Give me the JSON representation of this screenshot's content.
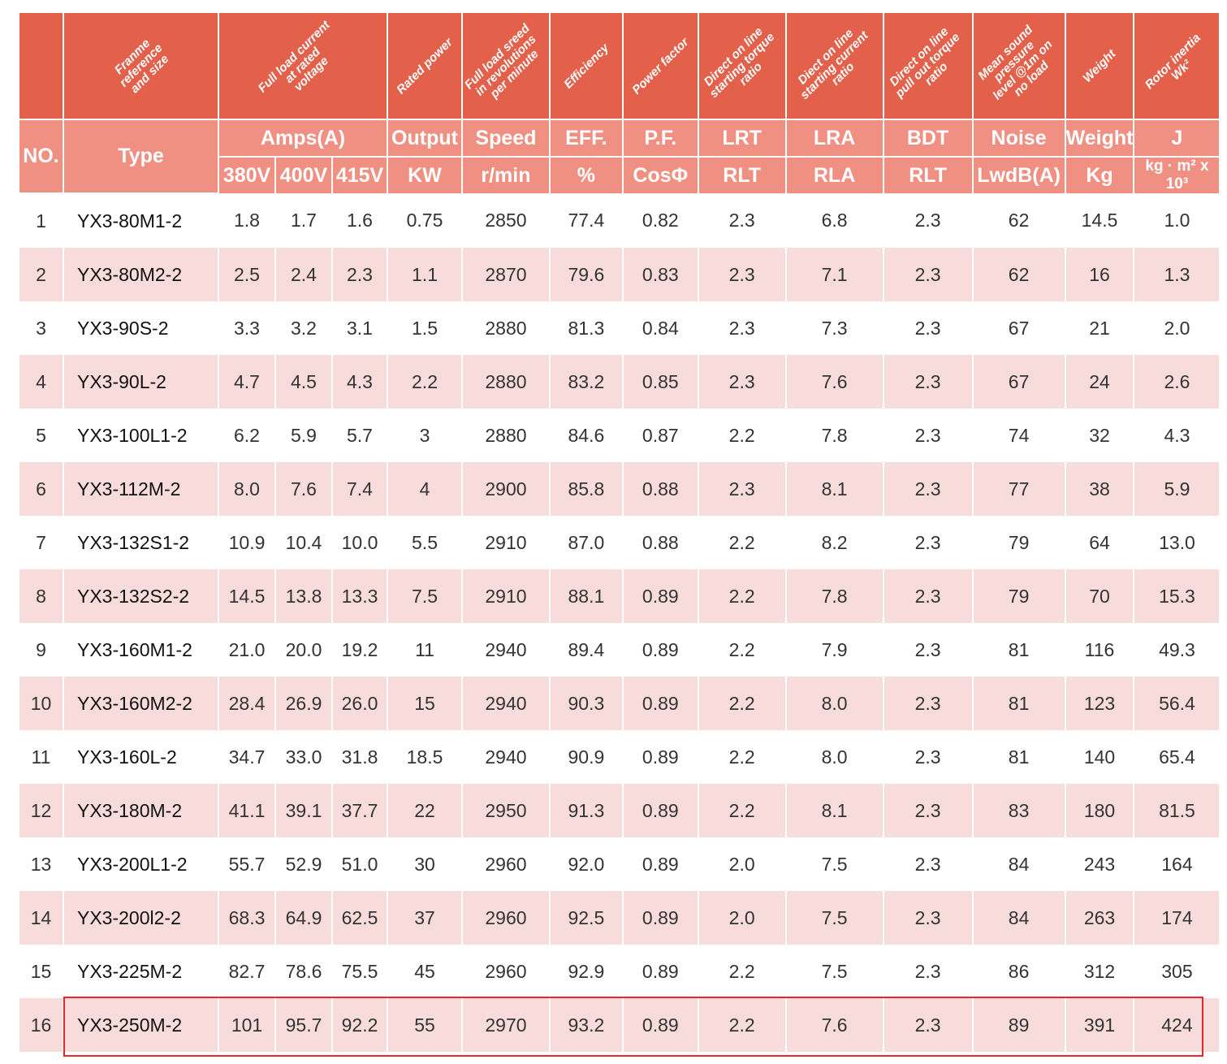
{
  "headers": {
    "rotated": [
      "Franme\nreference\nand size",
      "Full load current\nat rated\nvoltage",
      "Rated power",
      "Full load sreed\nin revolutions\nper minute",
      "Efficiency",
      "Power factor",
      "Direct on line\nstarting torque\nratio",
      "Diect on line\nstarting current\nratio",
      "Direct on line\npull out torque\nratio",
      "Mean sound\npressure\nlevel @1m on\nno load",
      "Weight",
      "Rotor inertia\nWk²"
    ],
    "no": "NO.",
    "type": "Type",
    "amps": "Amps(A)",
    "output": "Output",
    "speed": "Speed",
    "eff": "EFF.",
    "pf": "P.F.",
    "lrt": "LRT",
    "lra": "LRA",
    "bdt": "BDT",
    "noise": "Noise",
    "weight": "Weight",
    "j": "J",
    "v380": "380V",
    "v400": "400V",
    "v415": "415V",
    "kw": "KW",
    "rmin": "r/min",
    "pct": "%",
    "cos": "CosΦ",
    "rlt": "RLT",
    "rla": "RLA",
    "rlt2": "RLT",
    "lwdb": "LwdB(A)",
    "kg": "Kg",
    "jUnit": "kg · m² x 10³"
  },
  "rows": [
    [
      "1",
      "YX3-80M1-2",
      "1.8",
      "1.7",
      "1.6",
      "0.75",
      "2850",
      "77.4",
      "0.82",
      "2.3",
      "6.8",
      "2.3",
      "62",
      "14.5",
      "1.0"
    ],
    [
      "2",
      "YX3-80M2-2",
      "2.5",
      "2.4",
      "2.3",
      "1.1",
      "2870",
      "79.6",
      "0.83",
      "2.3",
      "7.1",
      "2.3",
      "62",
      "16",
      "1.3"
    ],
    [
      "3",
      "YX3-90S-2",
      "3.3",
      "3.2",
      "3.1",
      "1.5",
      "2880",
      "81.3",
      "0.84",
      "2.3",
      "7.3",
      "2.3",
      "67",
      "21",
      "2.0"
    ],
    [
      "4",
      "YX3-90L-2",
      "4.7",
      "4.5",
      "4.3",
      "2.2",
      "2880",
      "83.2",
      "0.85",
      "2.3",
      "7.6",
      "2.3",
      "67",
      "24",
      "2.6"
    ],
    [
      "5",
      "YX3-100L1-2",
      "6.2",
      "5.9",
      "5.7",
      "3",
      "2880",
      "84.6",
      "0.87",
      "2.2",
      "7.8",
      "2.3",
      "74",
      "32",
      "4.3"
    ],
    [
      "6",
      "YX3-112M-2",
      "8.0",
      "7.6",
      "7.4",
      "4",
      "2900",
      "85.8",
      "0.88",
      "2.3",
      "8.1",
      "2.3",
      "77",
      "38",
      "5.9"
    ],
    [
      "7",
      "YX3-132S1-2",
      "10.9",
      "10.4",
      "10.0",
      "5.5",
      "2910",
      "87.0",
      "0.88",
      "2.2",
      "8.2",
      "2.3",
      "79",
      "64",
      "13.0"
    ],
    [
      "8",
      "YX3-132S2-2",
      "14.5",
      "13.8",
      "13.3",
      "7.5",
      "2910",
      "88.1",
      "0.89",
      "2.2",
      "7.8",
      "2.3",
      "79",
      "70",
      "15.3"
    ],
    [
      "9",
      "YX3-160M1-2",
      "21.0",
      "20.0",
      "19.2",
      "11",
      "2940",
      "89.4",
      "0.89",
      "2.2",
      "7.9",
      "2.3",
      "81",
      "116",
      "49.3"
    ],
    [
      "10",
      "YX3-160M2-2",
      "28.4",
      "26.9",
      "26.0",
      "15",
      "2940",
      "90.3",
      "0.89",
      "2.2",
      "8.0",
      "2.3",
      "81",
      "123",
      "56.4"
    ],
    [
      "11",
      "YX3-160L-2",
      "34.7",
      "33.0",
      "31.8",
      "18.5",
      "2940",
      "90.9",
      "0.89",
      "2.2",
      "8.0",
      "2.3",
      "81",
      "140",
      "65.4"
    ],
    [
      "12",
      "YX3-180M-2",
      "41.1",
      "39.1",
      "37.7",
      "22",
      "2950",
      "91.3",
      "0.89",
      "2.2",
      "8.1",
      "2.3",
      "83",
      "180",
      "81.5"
    ],
    [
      "13",
      "YX3-200L1-2",
      "55.7",
      "52.9",
      "51.0",
      "30",
      "2960",
      "92.0",
      "0.89",
      "2.0",
      "7.5",
      "2.3",
      "84",
      "243",
      "164"
    ],
    [
      "14",
      "YX3-200l2-2",
      "68.3",
      "64.9",
      "62.5",
      "37",
      "2960",
      "92.5",
      "0.89",
      "2.0",
      "7.5",
      "2.3",
      "84",
      "263",
      "174"
    ],
    [
      "15",
      "YX3-225M-2",
      "82.7",
      "78.6",
      "75.5",
      "45",
      "2960",
      "92.9",
      "0.89",
      "2.2",
      "7.5",
      "2.3",
      "86",
      "312",
      "305"
    ],
    [
      "16",
      "YX3-250M-2",
      "101",
      "95.7",
      "92.2",
      "55",
      "2970",
      "93.2",
      "0.89",
      "2.2",
      "7.6",
      "2.3",
      "89",
      "391",
      "424"
    ]
  ],
  "highlight_row": 16,
  "colors": {
    "header_dark": "#e3604b",
    "header_light": "#ef9083",
    "row_alt": "#f8dcdc",
    "highlight": "#e8262b"
  }
}
